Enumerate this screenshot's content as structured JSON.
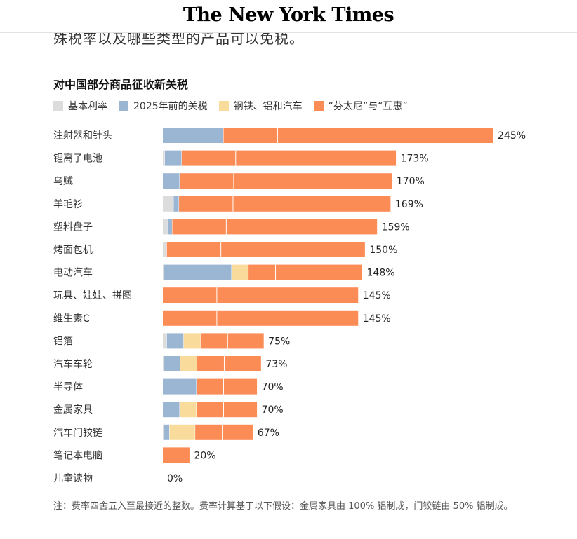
{
  "header": {
    "logo_text": "The New York Times"
  },
  "intro": {
    "text": "殊税率以及哪些类型的产品可以免税。"
  },
  "colors": {
    "base": "#dcdcdc",
    "pre2025": "#9bb6d3",
    "steel": "#f9dc9b",
    "fentanyl": "#fb8c55"
  },
  "legend": [
    {
      "label": "基本利率",
      "color": "#dcdcdc"
    },
    {
      "label": "2025年前的关税",
      "color": "#9bb6d3"
    },
    {
      "label": "钢铁、铝和汽车",
      "color": "#f9dc9b"
    },
    {
      "label": "“芬太尼”与“互惠”",
      "color": "#fb8c55"
    }
  ],
  "chart_data": {
    "type": "bar",
    "orientation": "horizontal",
    "stacked": true,
    "title": "对中国部分商品征收新关税",
    "categories": [
      "注射器和针头",
      "锂离子电池",
      "乌贼",
      "羊毛衫",
      "塑料盘子",
      "烤面包机",
      "电动汽车",
      "玩具、娃娃、拼图",
      "维生素C",
      "铝箔",
      "汽车车轮",
      "半导体",
      "金属家具",
      "汽车门铰链",
      "笔记本电脑",
      "儿童读物"
    ],
    "series": [
      {
        "name": "基本利率",
        "values": [
          0,
          1.5,
          0,
          8,
          3.5,
          3,
          1,
          0,
          0,
          3,
          1,
          0,
          0,
          1,
          0,
          0
        ]
      },
      {
        "name": "2025年前的关税",
        "values": [
          45,
          12.5,
          12.5,
          4,
          3.5,
          0,
          50,
          0,
          0,
          12.5,
          12,
          25,
          12.5,
          4,
          0,
          0
        ]
      },
      {
        "name": "钢铁、铝和汽车",
        "values": [
          0,
          0,
          0,
          0,
          0,
          0,
          12.5,
          0,
          0,
          12.5,
          12.5,
          0,
          12.5,
          19,
          0,
          0
        ]
      },
      {
        "name": "“芬太尼”与“互惠”",
        "values": [
          200,
          159,
          157.5,
          157,
          152,
          147,
          84.5,
          145,
          145,
          47,
          47.5,
          45,
          45,
          43,
          20,
          0
        ]
      }
    ],
    "totals": [
      245,
      173,
      170,
      169,
      159,
      150,
      148,
      145,
      145,
      75,
      73,
      70,
      70,
      67,
      20,
      0
    ],
    "total_labels": [
      "245%",
      "173%",
      "170%",
      "169%",
      "159%",
      "150%",
      "148%",
      "145%",
      "145%",
      "75%",
      "73%",
      "70%",
      "70%",
      "67%",
      "20%",
      "0%"
    ],
    "xlim": [
      0,
      245
    ],
    "legend_position": "top-left"
  },
  "note": "注：费率四舍五入至最接近的整数。费率计算基于以下假设：金属家具由 100% 铝制成，门铰链由 50% 铝制成。"
}
